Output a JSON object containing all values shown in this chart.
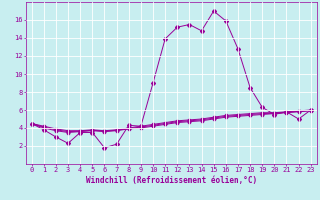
{
  "title": "",
  "xlabel": "Windchill (Refroidissement éolien,°C)",
  "background_color": "#c8eef0",
  "line_color": "#990099",
  "grid_color": "#ffffff",
  "x_values": [
    0,
    1,
    2,
    3,
    4,
    5,
    6,
    7,
    8,
    9,
    10,
    11,
    12,
    13,
    14,
    15,
    16,
    17,
    18,
    19,
    20,
    21,
    22,
    23
  ],
  "line_main": [
    4.5,
    3.8,
    3.0,
    2.3,
    3.5,
    3.5,
    1.8,
    2.2,
    4.3,
    4.2,
    9.0,
    13.9,
    15.2,
    15.5,
    14.8,
    17.0,
    15.9,
    12.8,
    8.5,
    6.3,
    5.5,
    5.8,
    5.0,
    6.0
  ],
  "flat1": [
    4.5,
    4.0,
    3.7,
    3.5,
    3.6,
    3.7,
    3.6,
    3.7,
    3.9,
    4.0,
    4.2,
    4.4,
    4.6,
    4.7,
    4.8,
    5.0,
    5.2,
    5.3,
    5.4,
    5.5,
    5.6,
    5.7,
    5.8,
    5.9
  ],
  "flat2": [
    4.5,
    4.1,
    3.8,
    3.6,
    3.65,
    3.75,
    3.65,
    3.75,
    3.95,
    4.1,
    4.3,
    4.5,
    4.7,
    4.8,
    4.9,
    5.1,
    5.3,
    5.4,
    5.5,
    5.6,
    5.65,
    5.75,
    5.85,
    5.95
  ],
  "flat3": [
    4.5,
    4.2,
    3.9,
    3.7,
    3.7,
    3.8,
    3.7,
    3.8,
    4.0,
    4.2,
    4.4,
    4.6,
    4.8,
    4.9,
    5.0,
    5.2,
    5.4,
    5.5,
    5.6,
    5.7,
    5.7,
    5.8,
    5.9,
    6.0
  ],
  "ylim": [
    0,
    18
  ],
  "xlim": [
    -0.5,
    23.5
  ],
  "yticks": [
    2,
    4,
    6,
    8,
    10,
    12,
    14,
    16
  ],
  "xticks": [
    0,
    1,
    2,
    3,
    4,
    5,
    6,
    7,
    8,
    9,
    10,
    11,
    12,
    13,
    14,
    15,
    16,
    17,
    18,
    19,
    20,
    21,
    22,
    23
  ],
  "xlabel_fontsize": 5.5,
  "tick_fontsize": 5.0,
  "line_width": 0.7,
  "marker_size_main": 2.0,
  "marker_size_flat": 1.5
}
